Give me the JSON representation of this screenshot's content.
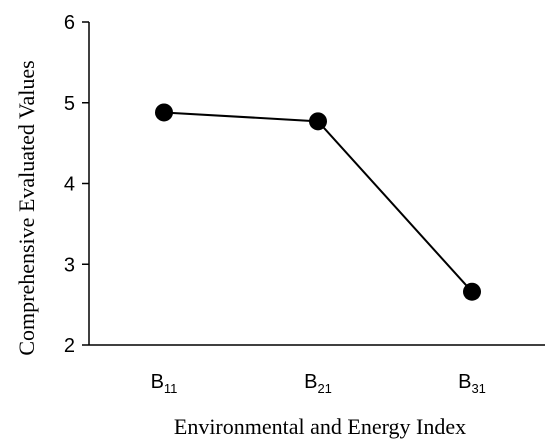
{
  "chart_data": {
    "type": "line",
    "xlabel": "Environmental and Energy Index",
    "ylabel": "Comprehensive Evaluated Values",
    "categories": [
      {
        "main": "B",
        "sub": "11"
      },
      {
        "main": "B",
        "sub": "21"
      },
      {
        "main": "B",
        "sub": "31"
      }
    ],
    "series": [
      {
        "values": [
          4.88,
          4.77,
          2.66
        ]
      }
    ],
    "ylim": [
      2,
      6
    ],
    "yticks": [
      2,
      3,
      4,
      5,
      6
    ],
    "grid": false,
    "colors": {
      "line": "#000000",
      "marker": "#000000",
      "axis": "#000000"
    }
  }
}
